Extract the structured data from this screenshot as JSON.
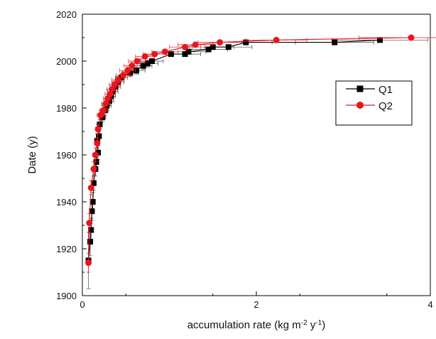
{
  "chart_data": {
    "type": "scatter",
    "title": "",
    "xlabel": "accumulation rate (kg m",
    "xlabel_sup1": "-2",
    "xlabel_mid": " y",
    "xlabel_sup2": "-1",
    "xlabel_end": ")",
    "ylabel": "Date (y)",
    "xlim": [
      0,
      4
    ],
    "ylim": [
      1900,
      2020
    ],
    "x_ticks": [
      "0",
      "2",
      "4"
    ],
    "y_ticks": [
      "1900",
      "1920",
      "1940",
      "1960",
      "1980",
      "2000",
      "2020"
    ],
    "grid": false,
    "legend_position": "right-middle",
    "series": [
      {
        "name": "Q1",
        "color": "#000000",
        "marker": "square",
        "points": [
          {
            "x": 0.07,
            "y": 1915,
            "xerr": 0.02,
            "yerr": 12
          },
          {
            "x": 0.09,
            "y": 1923,
            "xerr": 0.02,
            "yerr": 6
          },
          {
            "x": 0.1,
            "y": 1928,
            "xerr": 0.02,
            "yerr": 5
          },
          {
            "x": 0.11,
            "y": 1936,
            "xerr": 0.02,
            "yerr": 4
          },
          {
            "x": 0.12,
            "y": 1940,
            "xerr": 0.02,
            "yerr": 4
          },
          {
            "x": 0.13,
            "y": 1948,
            "xerr": 0.02,
            "yerr": 3
          },
          {
            "x": 0.15,
            "y": 1954,
            "xerr": 0.02,
            "yerr": 3
          },
          {
            "x": 0.16,
            "y": 1957,
            "xerr": 0.02,
            "yerr": 3
          },
          {
            "x": 0.18,
            "y": 1961,
            "xerr": 0.03,
            "yerr": 3
          },
          {
            "x": 0.17,
            "y": 1966,
            "xerr": 0.03,
            "yerr": 3
          },
          {
            "x": 0.19,
            "y": 1968,
            "xerr": 0.03,
            "yerr": 2
          },
          {
            "x": 0.2,
            "y": 1973,
            "xerr": 0.03,
            "yerr": 2
          },
          {
            "x": 0.23,
            "y": 1976,
            "xerr": 0.04,
            "yerr": 2
          },
          {
            "x": 0.26,
            "y": 1979,
            "xerr": 0.04,
            "yerr": 2
          },
          {
            "x": 0.28,
            "y": 1981,
            "xerr": 0.05,
            "yerr": 2
          },
          {
            "x": 0.31,
            "y": 1983,
            "xerr": 0.05,
            "yerr": 2
          },
          {
            "x": 0.33,
            "y": 1985,
            "xerr": 0.05,
            "yerr": 2
          },
          {
            "x": 0.35,
            "y": 1987,
            "xerr": 0.06,
            "yerr": 2
          },
          {
            "x": 0.38,
            "y": 1989,
            "xerr": 0.06,
            "yerr": 2
          },
          {
            "x": 0.41,
            "y": 1991,
            "xerr": 0.07,
            "yerr": 2
          },
          {
            "x": 0.45,
            "y": 1993,
            "xerr": 0.07,
            "yerr": 1.5
          },
          {
            "x": 0.55,
            "y": 1995,
            "xerr": 0.09,
            "yerr": 1.5
          },
          {
            "x": 0.62,
            "y": 1996,
            "xerr": 0.1,
            "yerr": 1.5
          },
          {
            "x": 0.7,
            "y": 1998,
            "xerr": 0.1,
            "yerr": 1.5
          },
          {
            "x": 0.75,
            "y": 1999,
            "xerr": 0.12,
            "yerr": 1.5
          },
          {
            "x": 0.8,
            "y": 2000,
            "xerr": 0.13,
            "yerr": 1
          },
          {
            "x": 1.02,
            "y": 2003,
            "xerr": 0.16,
            "yerr": 1
          },
          {
            "x": 1.18,
            "y": 2003,
            "xerr": 0.18,
            "yerr": 1
          },
          {
            "x": 1.22,
            "y": 2004,
            "xerr": 0.2,
            "yerr": 1
          },
          {
            "x": 1.45,
            "y": 2005,
            "xerr": 0.22,
            "yerr": 1
          },
          {
            "x": 1.5,
            "y": 2006,
            "xerr": 0.24,
            "yerr": 1
          },
          {
            "x": 1.68,
            "y": 2006,
            "xerr": 0.27,
            "yerr": 1
          },
          {
            "x": 1.88,
            "y": 2008,
            "xerr": 0.3,
            "yerr": 1
          },
          {
            "x": 2.9,
            "y": 2008,
            "xerr": 0.45,
            "yerr": 0.8
          },
          {
            "x": 3.42,
            "y": 2009,
            "xerr": 0.55,
            "yerr": 0.8
          }
        ]
      },
      {
        "name": "Q2",
        "color": "#e8161c",
        "marker": "circle",
        "points": [
          {
            "x": 0.07,
            "y": 1914,
            "xerr": 0.02,
            "yerr": 4
          },
          {
            "x": 0.08,
            "y": 1931,
            "xerr": 0.02,
            "yerr": 4
          },
          {
            "x": 0.1,
            "y": 1946,
            "xerr": 0.02,
            "yerr": 3
          },
          {
            "x": 0.13,
            "y": 1954,
            "xerr": 0.02,
            "yerr": 3
          },
          {
            "x": 0.15,
            "y": 1960,
            "xerr": 0.03,
            "yerr": 3
          },
          {
            "x": 0.17,
            "y": 1965,
            "xerr": 0.03,
            "yerr": 2
          },
          {
            "x": 0.18,
            "y": 1971,
            "xerr": 0.03,
            "yerr": 2
          },
          {
            "x": 0.21,
            "y": 1977,
            "xerr": 0.04,
            "yerr": 2
          },
          {
            "x": 0.24,
            "y": 1979,
            "xerr": 0.04,
            "yerr": 2
          },
          {
            "x": 0.27,
            "y": 1982,
            "xerr": 0.05,
            "yerr": 2
          },
          {
            "x": 0.29,
            "y": 1984,
            "xerr": 0.05,
            "yerr": 2
          },
          {
            "x": 0.32,
            "y": 1986,
            "xerr": 0.06,
            "yerr": 2
          },
          {
            "x": 0.34,
            "y": 1988,
            "xerr": 0.06,
            "yerr": 2
          },
          {
            "x": 0.37,
            "y": 1990,
            "xerr": 0.06,
            "yerr": 1.5
          },
          {
            "x": 0.41,
            "y": 1992,
            "xerr": 0.07,
            "yerr": 1.5
          },
          {
            "x": 0.47,
            "y": 1994,
            "xerr": 0.08,
            "yerr": 1.5
          },
          {
            "x": 0.52,
            "y": 1996,
            "xerr": 0.09,
            "yerr": 1.5
          },
          {
            "x": 0.57,
            "y": 1998,
            "xerr": 0.09,
            "yerr": 1.5
          },
          {
            "x": 0.63,
            "y": 2000,
            "xerr": 0.1,
            "yerr": 1
          },
          {
            "x": 0.72,
            "y": 2002,
            "xerr": 0.11,
            "yerr": 1
          },
          {
            "x": 0.83,
            "y": 2003,
            "xerr": 0.13,
            "yerr": 1
          },
          {
            "x": 0.95,
            "y": 2004,
            "xerr": 0.15,
            "yerr": 1
          },
          {
            "x": 1.18,
            "y": 2006,
            "xerr": 0.18,
            "yerr": 1
          },
          {
            "x": 1.3,
            "y": 2007,
            "xerr": 0.2,
            "yerr": 1
          },
          {
            "x": 1.58,
            "y": 2008,
            "xerr": 0.25,
            "yerr": 0.8
          },
          {
            "x": 2.23,
            "y": 2009,
            "xerr": 0.35,
            "yerr": 0.8
          },
          {
            "x": 3.78,
            "y": 2010,
            "xerr": 0.6,
            "yerr": 0.8
          }
        ]
      }
    ]
  }
}
